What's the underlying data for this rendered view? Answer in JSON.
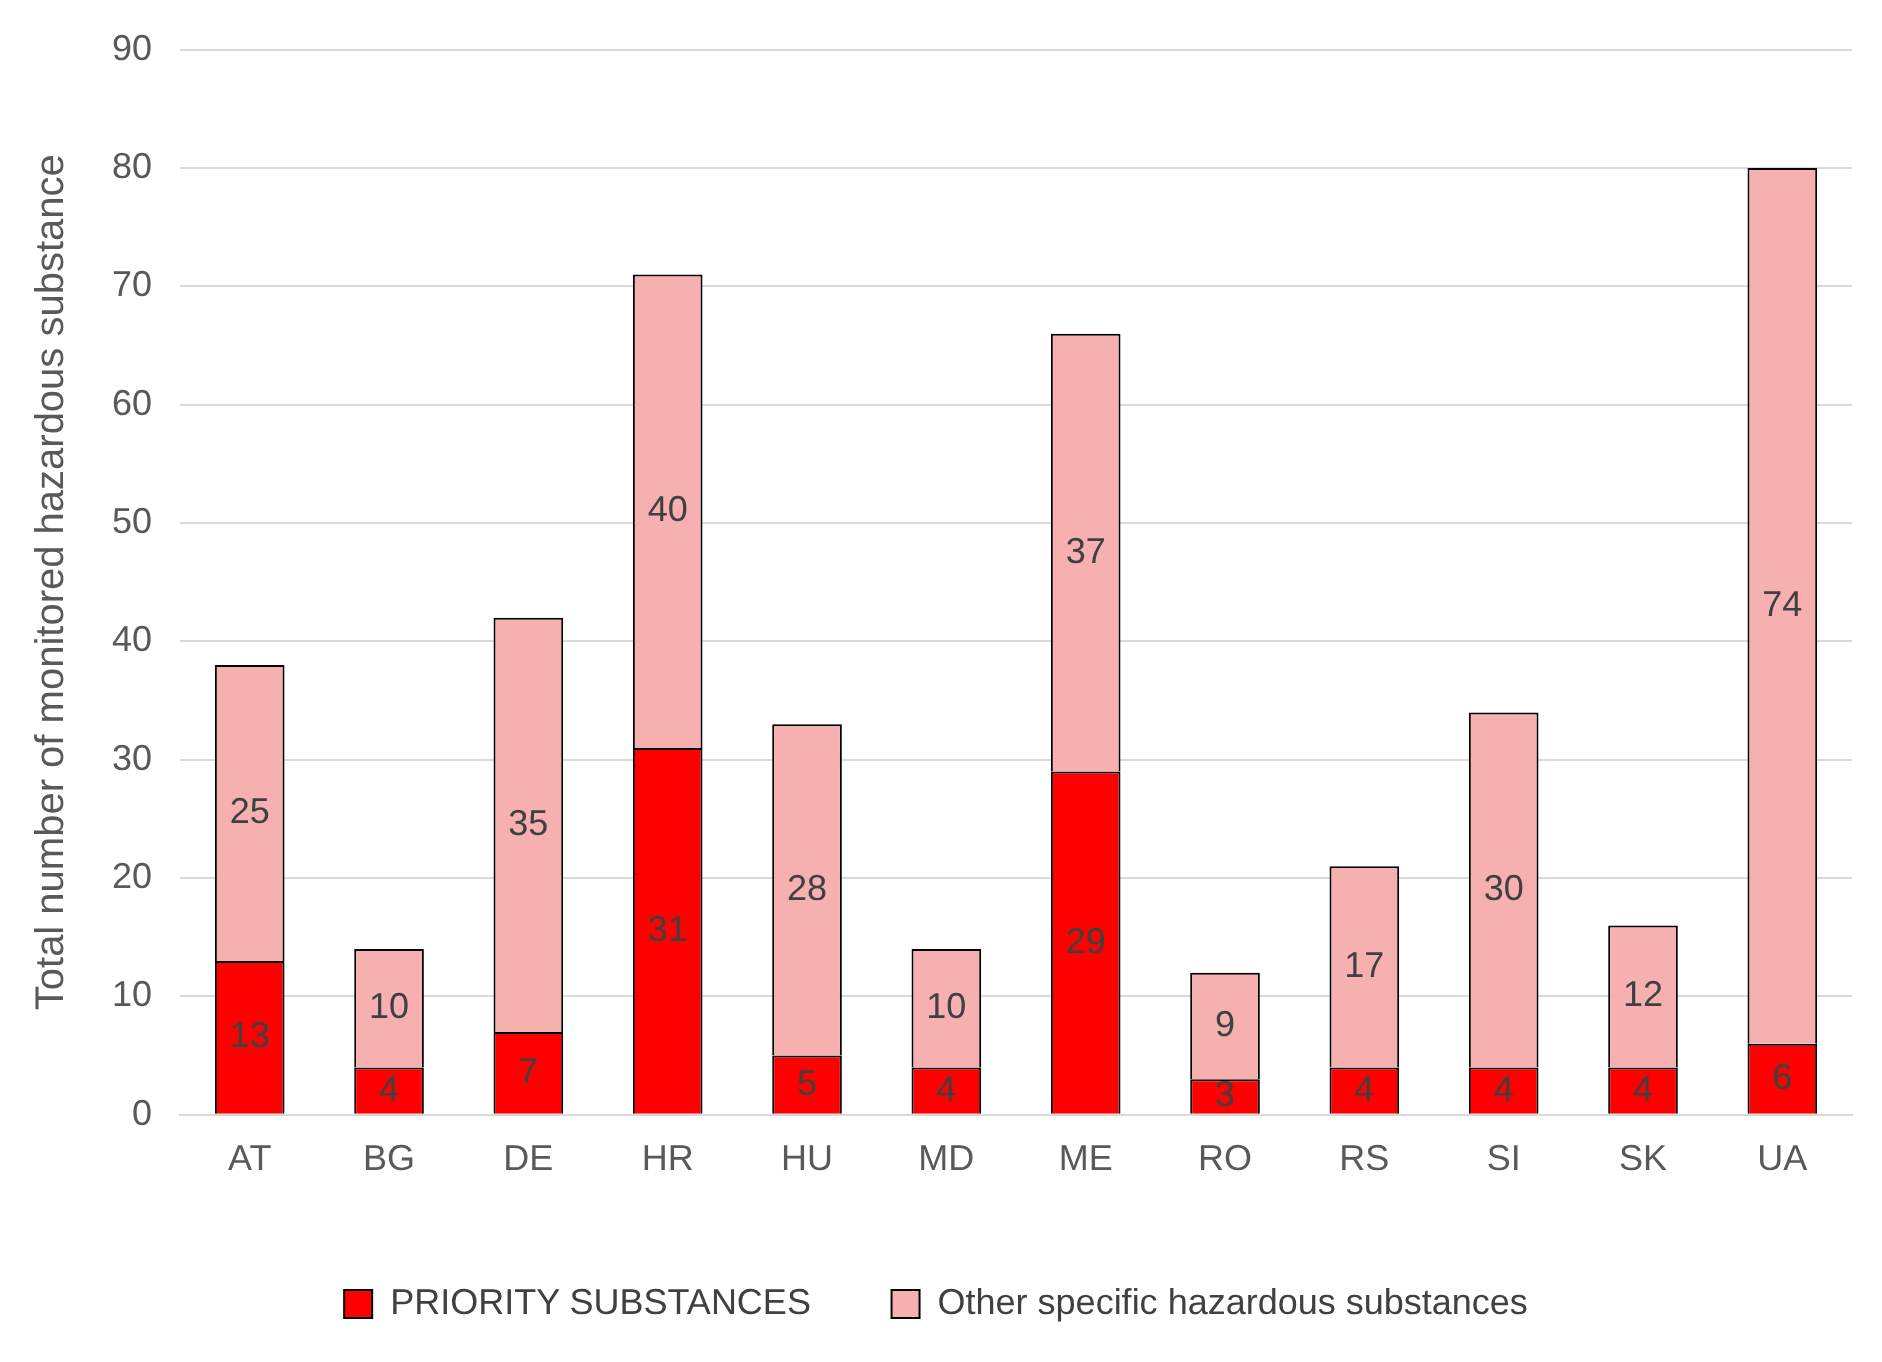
{
  "chart_data": {
    "type": "bar",
    "stacked": true,
    "ylabel": "Total number of monitored hazardous substance",
    "categories": [
      "AT",
      "BG",
      "DE",
      "HR",
      "HU",
      "MD",
      "ME",
      "RO",
      "RS",
      "SI",
      "SK",
      "UA"
    ],
    "series": [
      {
        "name": "PRIORITY SUBSTANCES",
        "color": "#ff0000",
        "values": [
          13,
          4,
          7,
          31,
          5,
          4,
          29,
          3,
          4,
          4,
          4,
          6
        ]
      },
      {
        "name": "Other specific hazardous substances",
        "color": "#f7b0b0",
        "values": [
          25,
          10,
          35,
          40,
          28,
          10,
          37,
          9,
          17,
          30,
          12,
          74
        ]
      }
    ],
    "ylim": [
      0,
      90
    ],
    "yticks": [
      0,
      10,
      20,
      30,
      40,
      50,
      60,
      70,
      80,
      90
    ],
    "grid": "y",
    "legend": "bottom",
    "data_labels": true
  }
}
